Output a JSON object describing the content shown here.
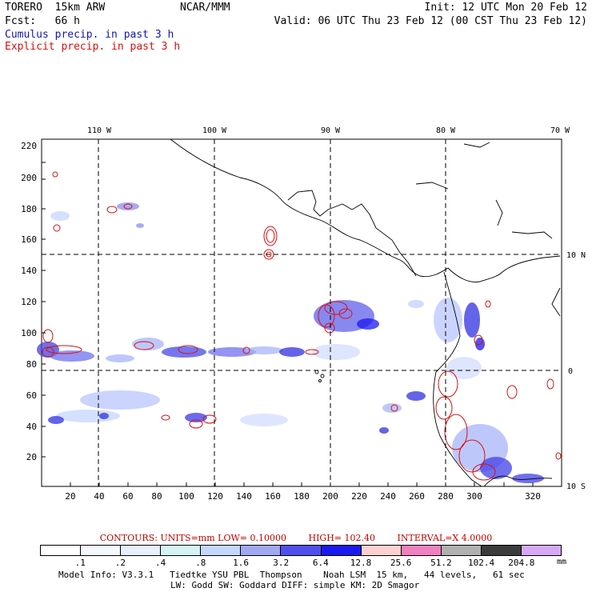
{
  "header": {
    "title": "TORERO  15km ARW",
    "center": "NCAR/MMM",
    "init": "Init: 12 UTC Mon 20 Feb 12",
    "fcst": "Fcst:   66 h",
    "valid": "Valid: 06 UTC Thu 23 Feb 12 (00 CST Thu 23 Feb 12)",
    "cumulus_label": "Cumulus precip. in past 3 h",
    "explicit_label": "Explicit precip. in past 3 h"
  },
  "colors": {
    "cumulus": "#1515b0",
    "explicit": "#d81010",
    "coast": "#000000",
    "grid": "#000000"
  },
  "axes": {
    "x_ticks": [
      "20",
      "40",
      "60",
      "80",
      "100",
      "120",
      "140",
      "160",
      "180",
      "200",
      "220",
      "240",
      "260",
      "280",
      "300",
      "320"
    ],
    "y_ticks": [
      "20",
      "40",
      "60",
      "80",
      "100",
      "120",
      "140",
      "160",
      "180",
      "200",
      "220"
    ],
    "lon_labels": [
      "110 W",
      "100 W",
      "90 W",
      "80 W",
      "70 W"
    ],
    "lat_labels": [
      "10 N",
      "0",
      "10 S"
    ]
  },
  "legend": {
    "contours": "CONTOURS:  UNITS=mm  LOW= 0.10000",
    "high": "HIGH=  102.40",
    "interval": "INTERVAL=X  4.0000",
    "values": [
      ".1",
      ".2",
      ".4",
      ".8",
      "1.6",
      "3.2",
      "6.4",
      "12.8",
      "25.6",
      "51.2",
      "102.4",
      "204.8"
    ],
    "unit": "mm",
    "colors": [
      "#ffffff",
      "#f4f8ff",
      "#e6f0ff",
      "#d4f4f4",
      "#c4d8ff",
      "#a0a8f0",
      "#5050f0",
      "#1a1af0",
      "#ffd0d0",
      "#f080c0",
      "#b0b0b0",
      "#3c3c3c",
      "#d8a8f8"
    ]
  },
  "footer": {
    "line1": "Model Info: V3.3.1   Tiedtke YSU PBL  Thompson    Noah LSM  15 km,   44 levels,   61 sec",
    "line2": "LW: Godd SW: Goddard DIFF: simple KM: 2D Smagor"
  }
}
